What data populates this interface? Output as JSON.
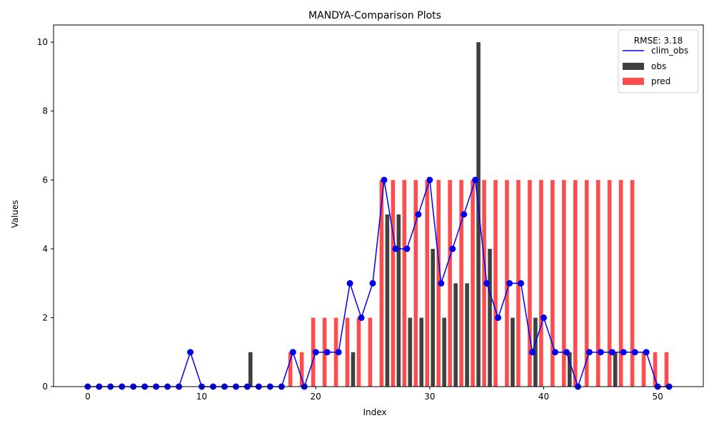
{
  "chart_data": {
    "type": "bar",
    "title": "MANDYA-Comparison Plots",
    "xlabel": "Index",
    "ylabel": "Values",
    "xlim": [
      -3,
      54
    ],
    "ylim": [
      0,
      10.5
    ],
    "xticks": [
      0,
      10,
      20,
      30,
      40,
      50
    ],
    "yticks": [
      0,
      2,
      4,
      6,
      8,
      10
    ],
    "grid": false,
    "legend": {
      "title": "RMSE: 3.18",
      "placement": "top-right",
      "entries": [
        "clim_obs",
        "obs",
        "pred"
      ]
    },
    "x": [
      0,
      1,
      2,
      3,
      4,
      5,
      6,
      7,
      8,
      9,
      10,
      11,
      12,
      13,
      14,
      15,
      16,
      17,
      18,
      19,
      20,
      21,
      22,
      23,
      24,
      25,
      26,
      27,
      28,
      29,
      30,
      31,
      32,
      33,
      34,
      35,
      36,
      37,
      38,
      39,
      40,
      41,
      42,
      43,
      44,
      45,
      46,
      47,
      48,
      49,
      50,
      51
    ],
    "series": [
      {
        "name": "obs",
        "kind": "bar",
        "color": "#404040",
        "values": [
          0,
          0,
          0,
          0,
          0,
          0,
          0,
          0,
          0,
          0,
          0,
          0,
          0,
          0,
          1,
          0,
          0,
          0,
          0,
          0,
          0,
          0,
          0,
          1,
          0,
          0,
          5,
          5,
          2,
          2,
          4,
          2,
          3,
          3,
          10,
          4,
          0,
          2,
          0,
          2,
          0,
          0,
          1,
          0,
          0,
          0,
          1,
          0,
          0,
          0,
          0,
          0
        ]
      },
      {
        "name": "pred",
        "kind": "bar",
        "color": "#ff4d4d",
        "values": [
          0,
          0,
          0,
          0,
          0,
          0,
          0,
          0,
          0,
          0,
          0,
          0,
          0,
          0,
          0,
          0,
          0,
          0,
          1,
          1,
          2,
          2,
          2,
          2,
          2,
          2,
          6,
          6,
          6,
          6,
          6,
          6,
          6,
          6,
          6,
          6,
          6,
          6,
          6,
          6,
          6,
          6,
          6,
          6,
          6,
          6,
          6,
          6,
          6,
          1,
          1,
          1
        ]
      },
      {
        "name": "clim_obs",
        "kind": "line",
        "color": "#0000ee",
        "values": [
          0,
          0,
          0,
          0,
          0,
          0,
          0,
          0,
          0,
          1,
          0,
          0,
          0,
          0,
          0,
          0,
          0,
          0,
          1,
          0,
          1,
          1,
          1,
          3,
          2,
          3,
          6,
          4,
          4,
          5,
          6,
          3,
          4,
          5,
          6,
          3,
          2,
          3,
          3,
          1,
          2,
          1,
          1,
          0,
          1,
          1,
          1,
          1,
          1,
          1,
          0,
          0
        ]
      }
    ]
  }
}
